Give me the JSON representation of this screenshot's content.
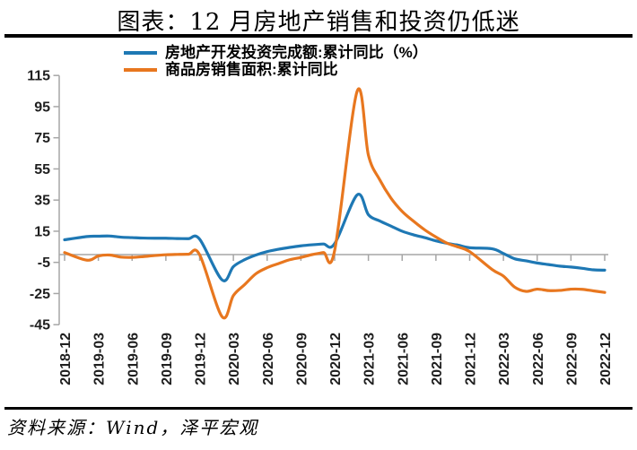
{
  "title": "图表：12 月房地产销售和投资仍低迷",
  "source_note": "资料来源：Wind，泽平宏观",
  "chart_data": {
    "type": "line",
    "title": "图表：12 月房地产销售和投资仍低迷",
    "ylabel": "",
    "xlabel": "",
    "ylim": [
      -45,
      115
    ],
    "y_tick_interval": 20,
    "y_ticks": [
      115,
      95,
      75,
      55,
      35,
      15,
      -5,
      -25,
      -45
    ],
    "x_tick_labels": [
      "2018-12",
      "2019-03",
      "2019-06",
      "2019-09",
      "2019-12",
      "2020-03",
      "2020-06",
      "2020-09",
      "2020-12",
      "2021-03",
      "2021-06",
      "2021-09",
      "2021-12",
      "2022-03",
      "2022-06",
      "2022-09",
      "2022-12"
    ],
    "grid": false,
    "zero_line": true,
    "legend_position": "top",
    "axis_color": "#A6A6A6",
    "tick_label_color": "#1f1f1f",
    "series": [
      {
        "name": "房地产开发投资完成额:累计同比（%）",
        "color": "#1E78B4",
        "points": [
          [
            "2018-12",
            9.5
          ],
          [
            "2019-02",
            11.6
          ],
          [
            "2019-03",
            11.8
          ],
          [
            "2019-04",
            11.9
          ],
          [
            "2019-05",
            11.2
          ],
          [
            "2019-06",
            10.9
          ],
          [
            "2019-07",
            10.6
          ],
          [
            "2019-08",
            10.5
          ],
          [
            "2019-09",
            10.5
          ],
          [
            "2019-10",
            10.3
          ],
          [
            "2019-11",
            10.2
          ],
          [
            "2019-12",
            9.9
          ],
          [
            "2020-02",
            -16.3
          ],
          [
            "2020-03",
            -7.7
          ],
          [
            "2020-04",
            -3.3
          ],
          [
            "2020-05",
            -0.3
          ],
          [
            "2020-06",
            1.9
          ],
          [
            "2020-07",
            3.4
          ],
          [
            "2020-08",
            4.6
          ],
          [
            "2020-09",
            5.6
          ],
          [
            "2020-10",
            6.3
          ],
          [
            "2020-11",
            6.8
          ],
          [
            "2020-12",
            7.0
          ],
          [
            "2021-02",
            38.3
          ],
          [
            "2021-03",
            25.6
          ],
          [
            "2021-04",
            21.6
          ],
          [
            "2021-05",
            18.3
          ],
          [
            "2021-06",
            15.0
          ],
          [
            "2021-07",
            12.7
          ],
          [
            "2021-08",
            10.9
          ],
          [
            "2021-09",
            8.8
          ],
          [
            "2021-10",
            7.2
          ],
          [
            "2021-11",
            6.0
          ],
          [
            "2021-12",
            4.4
          ],
          [
            "2022-02",
            3.7
          ],
          [
            "2022-03",
            0.7
          ],
          [
            "2022-04",
            -2.7
          ],
          [
            "2022-05",
            -4.0
          ],
          [
            "2022-06",
            -5.4
          ],
          [
            "2022-07",
            -6.4
          ],
          [
            "2022-08",
            -7.4
          ],
          [
            "2022-09",
            -8.0
          ],
          [
            "2022-10",
            -8.8
          ],
          [
            "2022-11",
            -9.8
          ],
          [
            "2022-12",
            -10.0
          ]
        ]
      },
      {
        "name": "商品房销售面积:累计同比",
        "color": "#E8771F",
        "points": [
          [
            "2018-12",
            1.3
          ],
          [
            "2019-02",
            -3.6
          ],
          [
            "2019-03",
            -0.9
          ],
          [
            "2019-04",
            -0.3
          ],
          [
            "2019-05",
            -1.6
          ],
          [
            "2019-06",
            -1.8
          ],
          [
            "2019-07",
            -1.3
          ],
          [
            "2019-08",
            -0.6
          ],
          [
            "2019-09",
            -0.1
          ],
          [
            "2019-10",
            0.1
          ],
          [
            "2019-11",
            0.2
          ],
          [
            "2019-12",
            -0.1
          ],
          [
            "2020-02",
            -39.9
          ],
          [
            "2020-03",
            -26.3
          ],
          [
            "2020-04",
            -19.3
          ],
          [
            "2020-05",
            -12.3
          ],
          [
            "2020-06",
            -8.4
          ],
          [
            "2020-07",
            -5.8
          ],
          [
            "2020-08",
            -3.3
          ],
          [
            "2020-09",
            -1.8
          ],
          [
            "2020-10",
            0.0
          ],
          [
            "2020-11",
            1.3
          ],
          [
            "2020-12",
            2.6
          ],
          [
            "2021-02",
            104.9
          ],
          [
            "2021-03",
            63.8
          ],
          [
            "2021-04",
            48.1
          ],
          [
            "2021-05",
            36.3
          ],
          [
            "2021-06",
            27.7
          ],
          [
            "2021-07",
            21.5
          ],
          [
            "2021-08",
            15.9
          ],
          [
            "2021-09",
            11.3
          ],
          [
            "2021-10",
            7.3
          ],
          [
            "2021-11",
            4.8
          ],
          [
            "2021-12",
            1.9
          ],
          [
            "2022-02",
            -9.6
          ],
          [
            "2022-03",
            -13.8
          ],
          [
            "2022-04",
            -20.9
          ],
          [
            "2022-05",
            -23.6
          ],
          [
            "2022-06",
            -22.2
          ],
          [
            "2022-07",
            -23.1
          ],
          [
            "2022-08",
            -23.0
          ],
          [
            "2022-09",
            -22.2
          ],
          [
            "2022-10",
            -22.3
          ],
          [
            "2022-11",
            -23.3
          ],
          [
            "2022-12",
            -24.3
          ]
        ]
      }
    ]
  }
}
